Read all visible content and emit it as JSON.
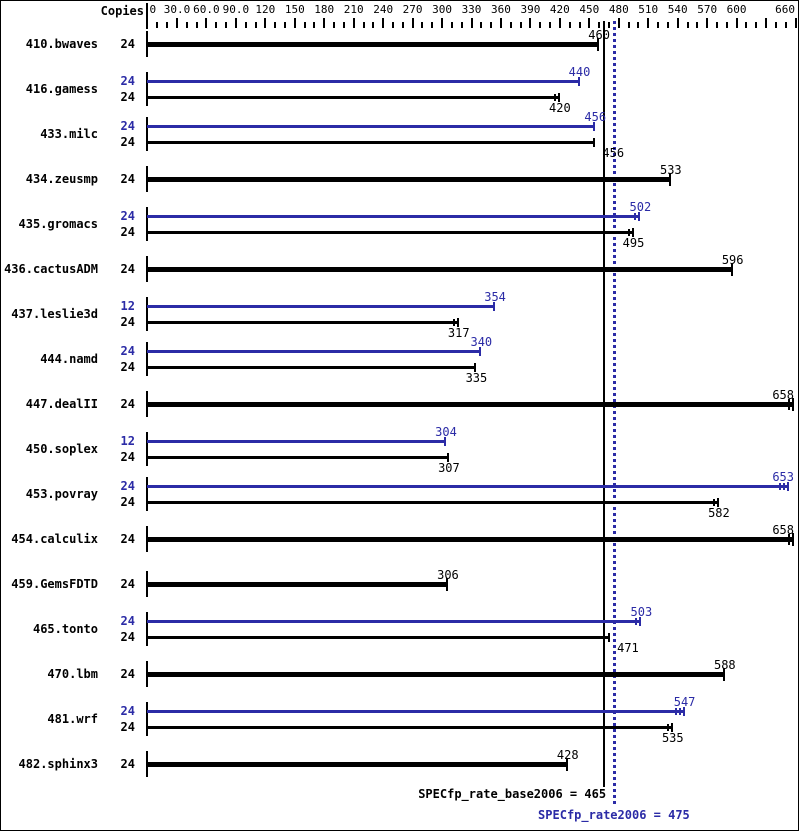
{
  "copies_header": "Copies",
  "colors": {
    "base": "#000000",
    "peak": "#2b2ba6",
    "background": "#ffffff",
    "border": "#000000"
  },
  "chart_data": {
    "type": "bar",
    "orientation": "horizontal",
    "title": "",
    "xlabel": "",
    "ylabel": "",
    "legend_position": "none",
    "grid": false,
    "axis": {
      "min": 0,
      "max": 660,
      "minor_step": 10,
      "major_step": 30,
      "tick_label_values": [
        0,
        30,
        60,
        90,
        120,
        150,
        180,
        210,
        240,
        270,
        300,
        330,
        360,
        390,
        420,
        450,
        480,
        510,
        540,
        570,
        600,
        660
      ],
      "tick_labels": [
        "0",
        "30.0",
        "60.0",
        "90.0",
        "120",
        "150",
        "180",
        "210",
        "240",
        "270",
        "300",
        "330",
        "360",
        "390",
        "420",
        "450",
        "480",
        "510",
        "540",
        "570",
        "600",
        "660"
      ]
    },
    "benchmarks": [
      {
        "name": "410.bwaves",
        "rows": [
          {
            "series": "basepeak",
            "copies": "24",
            "value": 460,
            "end_ticks": 1
          }
        ]
      },
      {
        "name": "416.gamess",
        "rows": [
          {
            "series": "peak",
            "copies": "24",
            "value": 440,
            "end_ticks": 1
          },
          {
            "series": "base",
            "copies": "24",
            "value": 420,
            "end_ticks": 2
          }
        ]
      },
      {
        "name": "433.milc",
        "rows": [
          {
            "series": "peak",
            "copies": "24",
            "value": 456,
            "end_ticks": 1
          },
          {
            "series": "base",
            "copies": "24",
            "value": 456,
            "end_ticks": 1
          }
        ]
      },
      {
        "name": "434.zeusmp",
        "rows": [
          {
            "series": "basepeak",
            "copies": "24",
            "value": 533,
            "end_ticks": 1
          }
        ]
      },
      {
        "name": "435.gromacs",
        "rows": [
          {
            "series": "peak",
            "copies": "24",
            "value": 502,
            "end_ticks": 2
          },
          {
            "series": "base",
            "copies": "24",
            "value": 495,
            "end_ticks": 2
          }
        ]
      },
      {
        "name": "436.cactusADM",
        "rows": [
          {
            "series": "basepeak",
            "copies": "24",
            "value": 596,
            "end_ticks": 1
          }
        ]
      },
      {
        "name": "437.leslie3d",
        "rows": [
          {
            "series": "peak",
            "copies": "12",
            "value": 354,
            "end_ticks": 1
          },
          {
            "series": "base",
            "copies": "24",
            "value": 317,
            "end_ticks": 2
          }
        ]
      },
      {
        "name": "444.namd",
        "rows": [
          {
            "series": "peak",
            "copies": "24",
            "value": 340,
            "end_ticks": 1
          },
          {
            "series": "base",
            "copies": "24",
            "value": 335,
            "end_ticks": 1
          }
        ]
      },
      {
        "name": "447.dealII",
        "rows": [
          {
            "series": "basepeak",
            "copies": "24",
            "value": 658,
            "end_ticks": 2
          }
        ]
      },
      {
        "name": "450.soplex",
        "rows": [
          {
            "series": "peak",
            "copies": "12",
            "value": 304,
            "end_ticks": 1
          },
          {
            "series": "base",
            "copies": "24",
            "value": 307,
            "end_ticks": 1
          }
        ]
      },
      {
        "name": "453.povray",
        "rows": [
          {
            "series": "peak",
            "copies": "24",
            "value": 653,
            "end_ticks": 3
          },
          {
            "series": "base",
            "copies": "24",
            "value": 582,
            "end_ticks": 2
          }
        ]
      },
      {
        "name": "454.calculix",
        "rows": [
          {
            "series": "basepeak",
            "copies": "24",
            "value": 658,
            "end_ticks": 2
          }
        ]
      },
      {
        "name": "459.GemsFDTD",
        "rows": [
          {
            "series": "basepeak",
            "copies": "24",
            "value": 306,
            "end_ticks": 1
          }
        ]
      },
      {
        "name": "465.tonto",
        "rows": [
          {
            "series": "peak",
            "copies": "24",
            "value": 503,
            "end_ticks": 2
          },
          {
            "series": "base",
            "copies": "24",
            "value": 471,
            "end_ticks": 1
          }
        ]
      },
      {
        "name": "470.lbm",
        "rows": [
          {
            "series": "basepeak",
            "copies": "24",
            "value": 588,
            "end_ticks": 1
          }
        ]
      },
      {
        "name": "481.wrf",
        "rows": [
          {
            "series": "peak",
            "copies": "24",
            "value": 547,
            "end_ticks": 3
          },
          {
            "series": "base",
            "copies": "24",
            "value": 535,
            "end_ticks": 2
          }
        ]
      },
      {
        "name": "482.sphinx3",
        "rows": [
          {
            "series": "basepeak",
            "copies": "24",
            "value": 428,
            "end_ticks": 1
          }
        ]
      }
    ],
    "reference_lines": [
      {
        "series": "base",
        "value": 465,
        "style": "solid"
      },
      {
        "series": "peak",
        "value": 475,
        "style": "dotted"
      }
    ]
  },
  "summary": {
    "base_label": "SPECfp_rate_base2006 = 465",
    "base_value": 465,
    "peak_label": "SPECfp_rate2006 = 475",
    "peak_value": 475
  }
}
